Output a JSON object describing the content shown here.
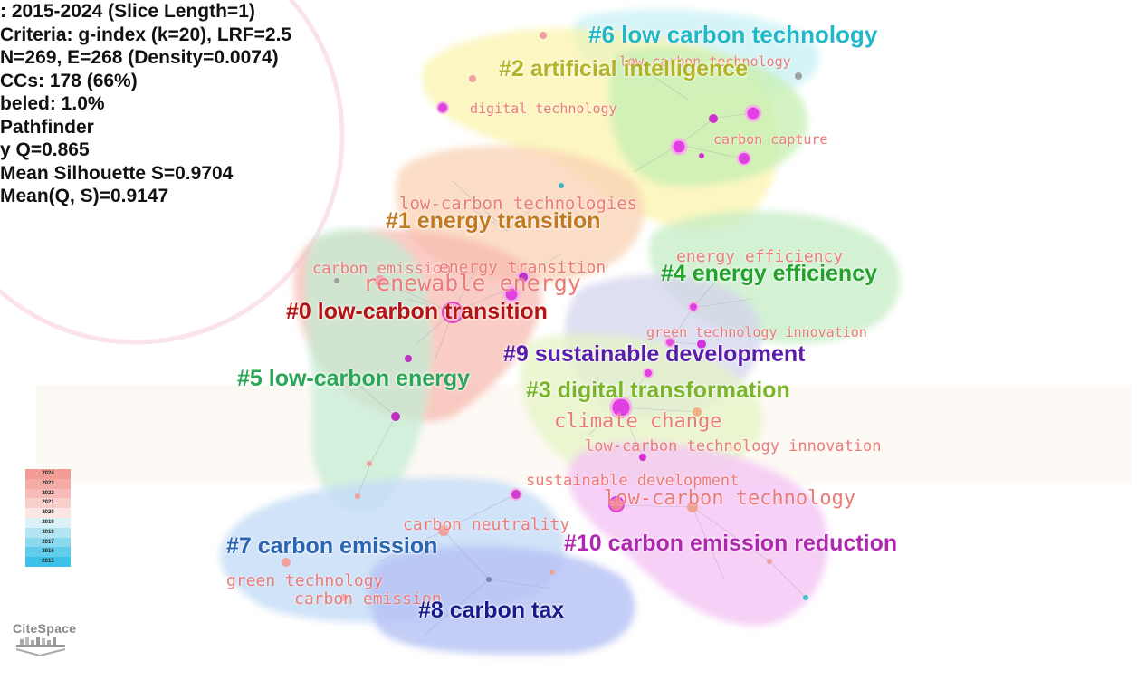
{
  "info_lines": [
    ": 2015-2024 (Slice Length=1)",
    "Criteria: g-index (k=20), LRF=2.5",
    "N=269, E=268 (Density=0.0074)",
    "CCs: 178 (66%)",
    "beled: 1.0%",
    "Pathfinder",
    "y Q=0.865",
    "Mean Silhouette S=0.9704",
    "Mean(Q, S)=0.9147"
  ],
  "clusters": [
    {
      "label": "#6 low carbon technology",
      "color": "#22b8c8"
    },
    {
      "label": "#2 artificial intelligence",
      "color": "#b3b325"
    },
    {
      "label": "#1 energy transition",
      "color": "#c07a22"
    },
    {
      "label": "#4 energy efficiency",
      "color": "#22a22c"
    },
    {
      "label": "#0 low-carbon transition",
      "color": "#b51414"
    },
    {
      "label": "#9 sustainable development",
      "color": "#5a1cab"
    },
    {
      "label": "#5 low-carbon energy",
      "color": "#2aa656"
    },
    {
      "label": "#3 digital transformation",
      "color": "#7ab52a"
    },
    {
      "label": "#7 carbon emission",
      "color": "#2a64b3"
    },
    {
      "label": "#10 carbon emission reduction",
      "color": "#b028b0"
    },
    {
      "label": "#8 carbon tax",
      "color": "#1a1a8c"
    }
  ],
  "keywords": [
    "low carbon technology",
    "digital technology",
    "carbon capture",
    "low-carbon technologies",
    "carbon emission",
    "energy transition",
    "renewable energy",
    "energy efficiency",
    "green technology innovation",
    "climate change",
    "low-carbon technology innovation",
    "sustainable development",
    "low-carbon technology",
    "carbon neutrality",
    "green technology",
    "carbon emission"
  ],
  "legend_years": [
    "2024",
    "2023",
    "2022",
    "2021",
    "2020",
    "2019",
    "2018",
    "2017",
    "2016",
    "2015"
  ],
  "legend_colors": [
    "#f39c96",
    "#f5aba6",
    "#f7bcb8",
    "#f9cfcc",
    "#fbe6e4",
    "#d9f1f7",
    "#b3e6f2",
    "#8ad9ee",
    "#62cdea",
    "#3cc2e6"
  ],
  "logo_text": "CiteSpace"
}
